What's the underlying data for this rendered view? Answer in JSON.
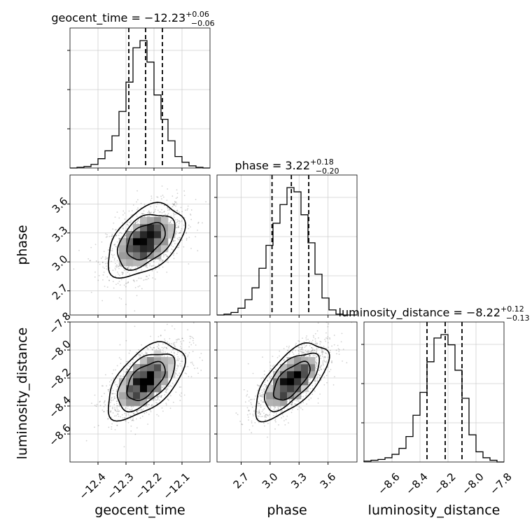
{
  "chart_data": {
    "type": "corner",
    "parameters": [
      "geocent_time",
      "phase",
      "luminosity_distance"
    ],
    "axis_labels": [
      "geocent_time",
      "phase",
      "luminosity_distance"
    ],
    "ranges": [
      [
        -12.5,
        -12.0
      ],
      [
        2.45,
        3.9
      ],
      [
        -8.8,
        -7.8
      ]
    ],
    "ticks": [
      [
        -12.4,
        -12.3,
        -12.2,
        -12.1
      ],
      [
        2.7,
        3.0,
        3.3,
        3.6
      ],
      [
        -8.6,
        -8.4,
        -8.2,
        -8.0,
        -7.8
      ]
    ],
    "tick_labels": [
      [
        "−12.4",
        "−12.3",
        "−12.2",
        "−12.1"
      ],
      [
        "2.7",
        "3.0",
        "3.3",
        "3.6"
      ],
      [
        "−8.6",
        "−8.4",
        "−8.2",
        "−8.0",
        "−7.8"
      ]
    ],
    "marginals": [
      {
        "parameter": "geocent_time",
        "title_main": "geocent_time = −12.23",
        "title_sup": "+0.06",
        "title_sub": "−0.06",
        "median": -12.23,
        "lower": -12.29,
        "upper": -12.17,
        "bin_edges_range": [
          -12.5,
          -12.0
        ],
        "bins": 20,
        "counts": [
          0,
          1,
          2,
          5,
          13,
          24,
          45,
          79,
          120,
          168,
          178,
          148,
          102,
          68,
          38,
          16,
          8,
          3,
          1,
          0
        ]
      },
      {
        "parameter": "phase",
        "title_main": "phase = 3.22",
        "title_sup": "+0.18",
        "title_sub": "−0.20",
        "median": 3.22,
        "lower": 3.02,
        "upper": 3.4,
        "bin_edges_range": [
          2.45,
          3.9
        ],
        "bins": 20,
        "counts": [
          0,
          1,
          3,
          8,
          18,
          32,
          55,
          82,
          108,
          130,
          150,
          145,
          118,
          85,
          48,
          20,
          6,
          1,
          0,
          0
        ]
      },
      {
        "parameter": "luminosity_distance",
        "title_main": "luminosity_distance = −8.22",
        "title_sup": "+0.12",
        "title_sub": "−0.13",
        "median": -8.22,
        "lower": -8.35,
        "upper": -8.1,
        "bin_edges_range": [
          -8.8,
          -7.8
        ],
        "bins": 20,
        "counts": [
          1,
          2,
          3,
          5,
          9,
          16,
          30,
          55,
          82,
          118,
          146,
          150,
          138,
          108,
          75,
          32,
          12,
          5,
          2,
          0
        ]
      }
    ],
    "joint": [
      {
        "x": "geocent_time",
        "y": "phase",
        "center": [
          -12.23,
          3.22
        ],
        "sd": [
          0.065,
          0.18
        ],
        "rho": 0.45
      },
      {
        "x": "geocent_time",
        "y": "luminosity_distance",
        "center": [
          -12.23,
          -8.22
        ],
        "sd": [
          0.065,
          0.13
        ],
        "rho": 0.55
      },
      {
        "x": "phase",
        "y": "luminosity_distance",
        "center": [
          3.22,
          -8.22
        ],
        "sd": [
          0.18,
          0.13
        ],
        "rho": 0.65
      }
    ],
    "grid": true
  }
}
